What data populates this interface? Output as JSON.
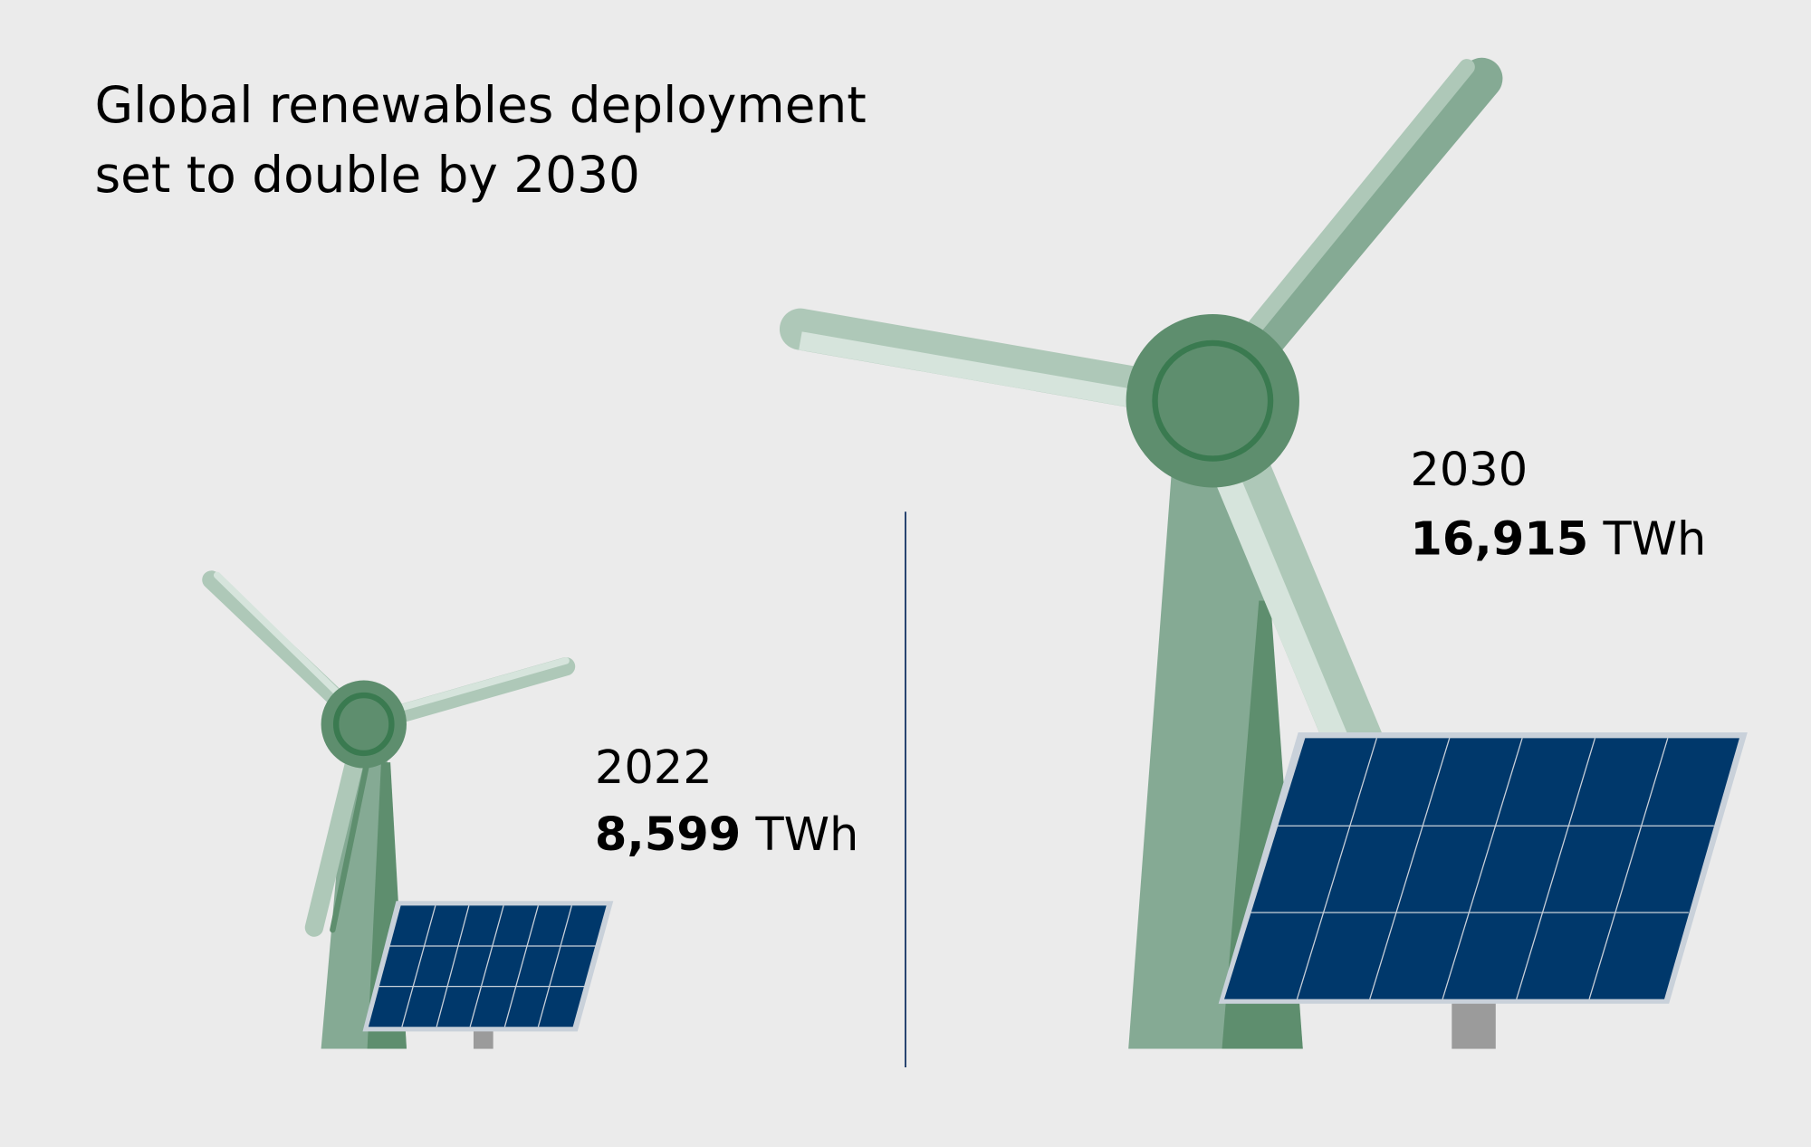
{
  "title": {
    "line1": "Global renewables deployment",
    "line2": "set to double by 2030"
  },
  "left": {
    "year": "2022",
    "value": "8,599",
    "unit": " TWh"
  },
  "right": {
    "year": "2030",
    "value": "16,915",
    "unit": " TWh"
  },
  "colors": {
    "background": "#ebebeb",
    "panel": "#00386b",
    "panel_frame": "#c9d1da",
    "tower": "#85aa94",
    "tower_dark": "#5e8e6e",
    "hub": "#5e8e6e",
    "hub_ring": "#3a7a50",
    "blade_light": "#d6e4dc",
    "blade_mid": "#aec8b8",
    "divider": "#1f3d6b",
    "post": "#9b9b9b"
  }
}
